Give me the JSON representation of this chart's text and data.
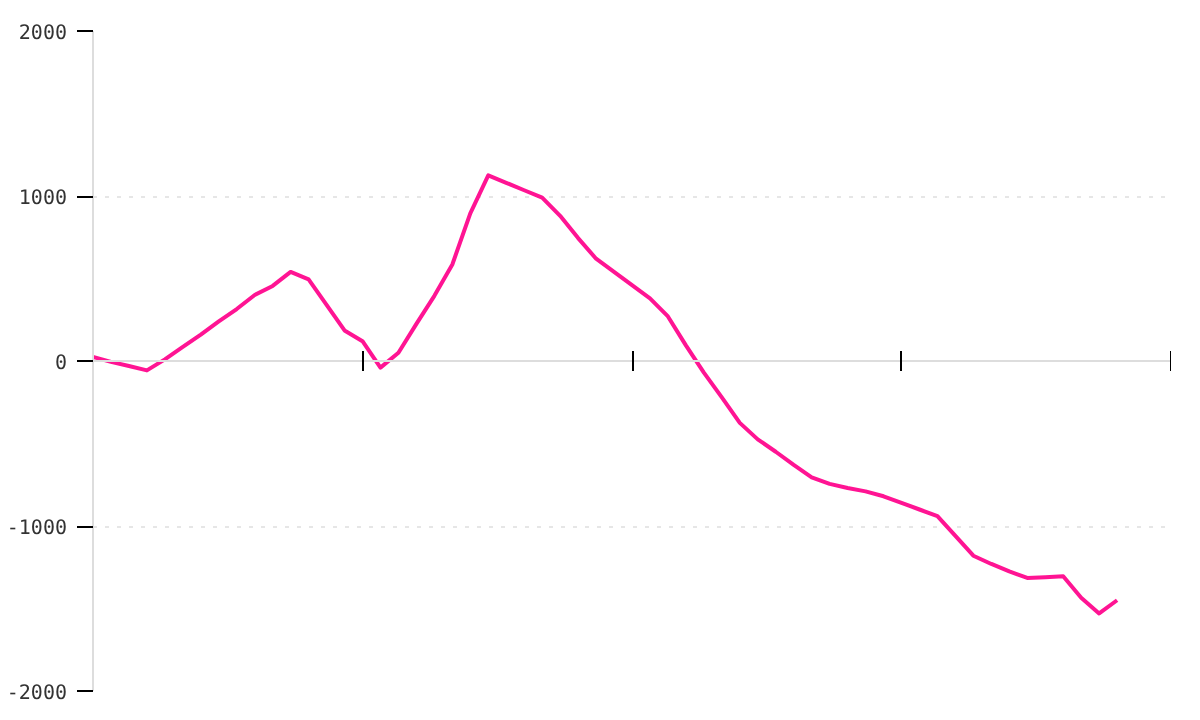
{
  "chart_data": {
    "type": "line",
    "categories": [
      null,
      null,
      null,
      null,
      null,
      null,
      null,
      null,
      null,
      null,
      null,
      null,
      null,
      null,
      null,
      null,
      null,
      null,
      null,
      null,
      null,
      null,
      null,
      null,
      null,
      null,
      null,
      null,
      null,
      null,
      null,
      null,
      null,
      null,
      null,
      null,
      null,
      null,
      null,
      null,
      null,
      null,
      null,
      null,
      null,
      null,
      null,
      null,
      null,
      null,
      null,
      null,
      null,
      null,
      null,
      null,
      null,
      null
    ],
    "values": [
      25,
      -5,
      -30,
      -57,
      10,
      85,
      160,
      240,
      315,
      400,
      455,
      540,
      495,
      340,
      185,
      120,
      -40,
      50,
      225,
      395,
      585,
      895,
      1125,
      1080,
      1035,
      990,
      880,
      745,
      620,
      540,
      460,
      380,
      270,
      95,
      -70,
      -220,
      -375,
      -475,
      -550,
      -630,
      -705,
      -745,
      -770,
      -790,
      -820,
      -860,
      -900,
      -940,
      -1060,
      -1180,
      -1230,
      -1275,
      -1315,
      -1310,
      -1305,
      -1435,
      -1530,
      -1450
    ],
    "color": "#ff1493",
    "ylim": [
      -2000,
      2000
    ],
    "yticks": [
      -2000,
      -1000,
      0,
      1000,
      2000
    ],
    "grid": "y",
    "tick_labels": "y",
    "marker": "none",
    "line_style": "solid"
  }
}
